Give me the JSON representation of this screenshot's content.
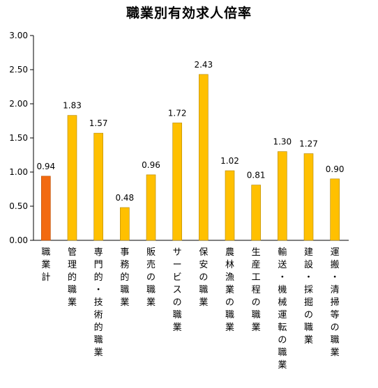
{
  "chart_data": {
    "type": "bar",
    "title": "職業別有効求人倍率",
    "xlabel": "",
    "ylabel": "",
    "ylim": [
      0,
      3.0
    ],
    "yticks": [
      "0.00",
      "0.50",
      "1.00",
      "1.50",
      "2.00",
      "2.50",
      "3.00"
    ],
    "grid": false,
    "legend": "none",
    "categories": [
      "職業計",
      "管理的職業",
      "専門的・技術的職業",
      "事務的職業",
      "販売の職業",
      "サービスの職業",
      "保安の職業",
      "農林漁業の職業",
      "生産工程の職業",
      "輸送・機械運転の職業",
      "建設・採掘の職業",
      "運搬・清掃等の職業"
    ],
    "values": [
      0.94,
      1.83,
      1.57,
      0.48,
      0.96,
      1.72,
      2.43,
      1.02,
      0.81,
      1.3,
      1.27,
      0.9
    ],
    "value_labels": [
      "0.94",
      "1.83",
      "1.57",
      "0.48",
      "0.96",
      "1.72",
      "2.43",
      "1.02",
      "0.81",
      "1.30",
      "1.27",
      "0.90"
    ],
    "colors": {
      "highlight": "#f26a10",
      "highlight_stroke": "#b84a00",
      "bar": "#ffc000",
      "bar_stroke": "#b08400",
      "axis": "#000000"
    },
    "highlight_index": 0
  }
}
